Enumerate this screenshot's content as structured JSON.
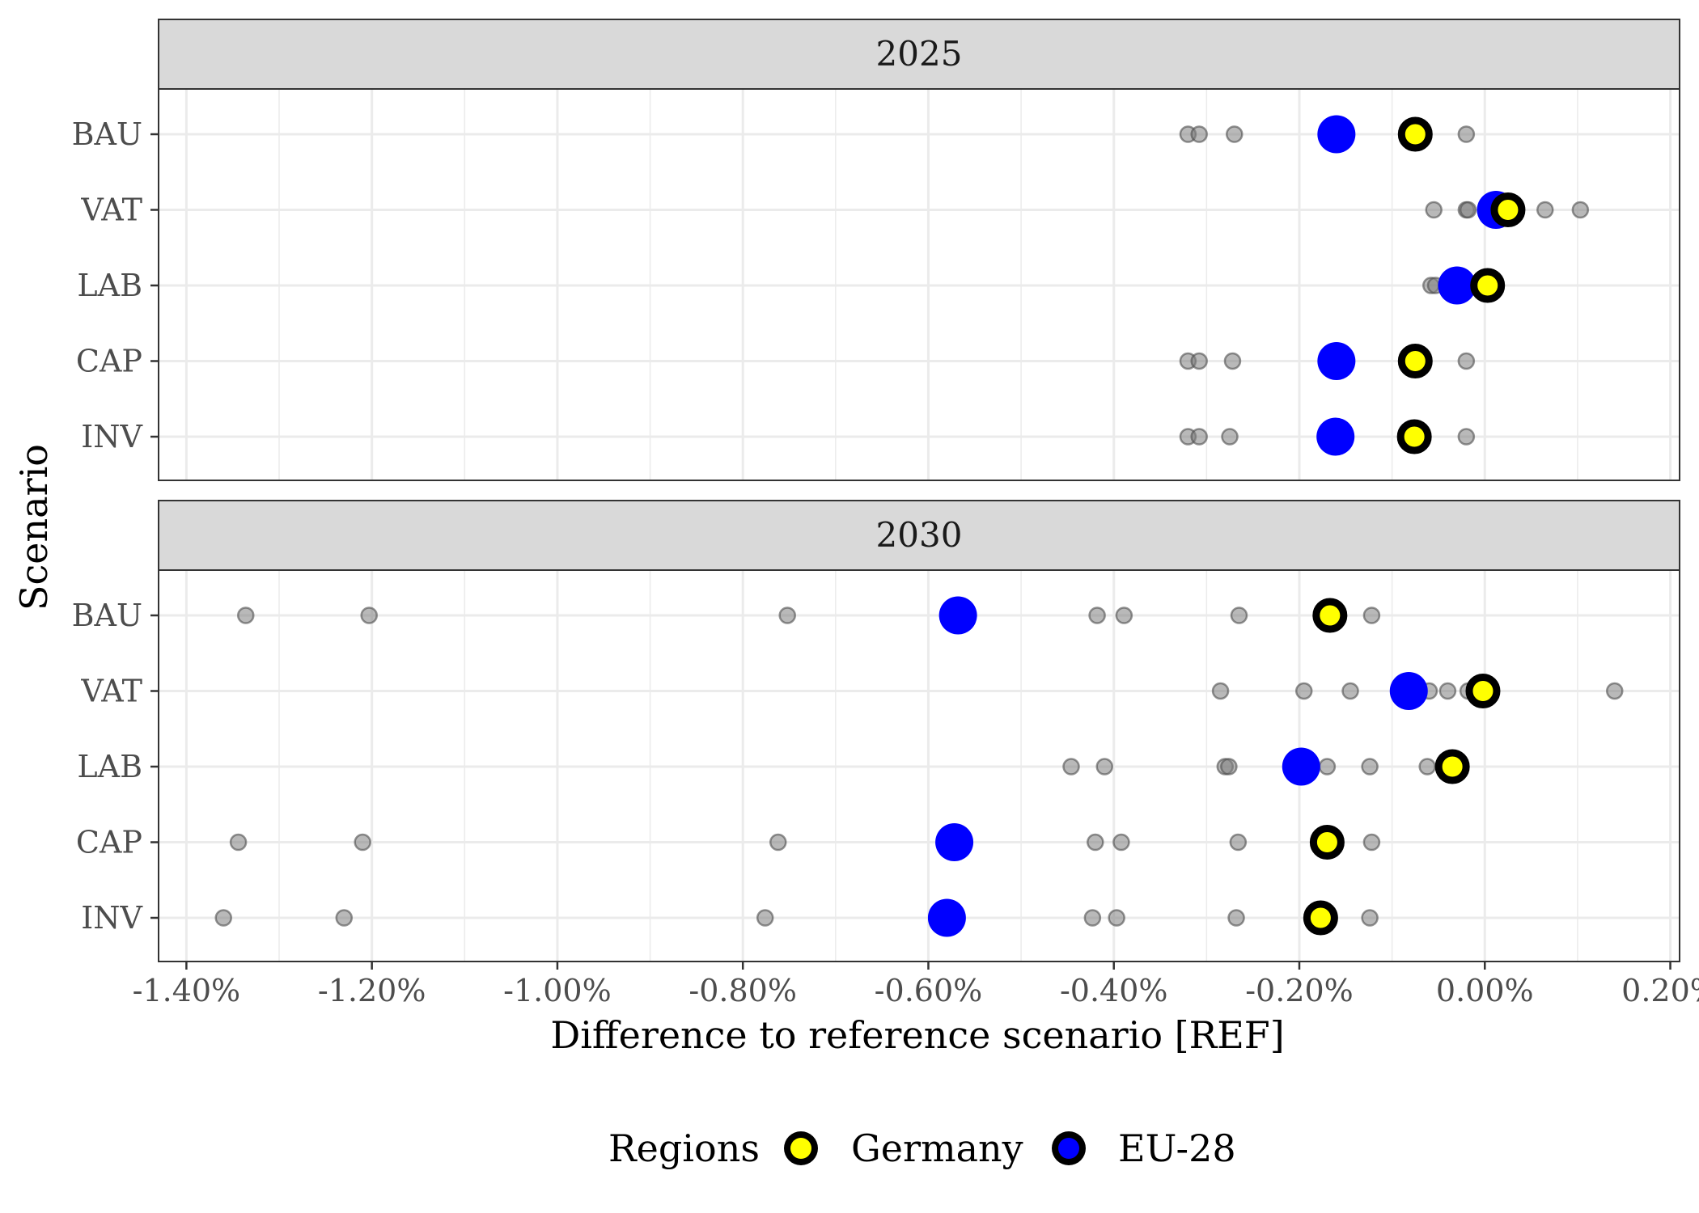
{
  "chart_data": {
    "type": "scatter",
    "xlabel": "Difference to reference scenario [REF]",
    "ylabel": "Scenario",
    "xlim": [
      -1.43,
      0.21
    ],
    "x_unit": "%",
    "x_ticks": [
      -1.4,
      -1.2,
      -1.0,
      -0.8,
      -0.6,
      -0.4,
      -0.2,
      0.0,
      0.2
    ],
    "x_tick_labels": [
      "-1.40%",
      "-1.20%",
      "-1.00%",
      "-0.80%",
      "-0.60%",
      "-0.40%",
      "-0.20%",
      "0.00%",
      "0.20%"
    ],
    "categories": [
      "BAU",
      "VAT",
      "LAB",
      "CAP",
      "INV"
    ],
    "grid": true,
    "legend": {
      "title": "Regions",
      "position": "bottom",
      "entries": [
        {
          "name": "Germany",
          "fill": "#ffff00",
          "outline": "#000000"
        },
        {
          "name": "EU-28",
          "fill": "#0000ff",
          "outline": "#000000"
        }
      ]
    },
    "colors": {
      "germany": "#ffff00",
      "eu28": "#0000ff",
      "other_regions": "#808080",
      "strip": "#d9d9d9"
    },
    "panels": [
      {
        "label": "2025",
        "rows": [
          {
            "scenario": "BAU",
            "germany": -0.075,
            "eu28": -0.16,
            "others": [
              -0.32,
              -0.308,
              -0.27,
              -0.02
            ]
          },
          {
            "scenario": "VAT",
            "germany": 0.025,
            "eu28": 0.012,
            "others": [
              -0.055,
              -0.02,
              -0.018,
              0.005,
              0.065,
              0.103
            ]
          },
          {
            "scenario": "LAB",
            "germany": 0.003,
            "eu28": -0.03,
            "others": [
              -0.058,
              -0.053
            ]
          },
          {
            "scenario": "CAP",
            "germany": -0.075,
            "eu28": -0.16,
            "others": [
              -0.32,
              -0.308,
              -0.272,
              -0.02
            ]
          },
          {
            "scenario": "INV",
            "germany": -0.076,
            "eu28": -0.161,
            "others": [
              -0.32,
              -0.308,
              -0.275,
              -0.02
            ]
          }
        ]
      },
      {
        "label": "2030",
        "rows": [
          {
            "scenario": "BAU",
            "germany": -0.167,
            "eu28": -0.568,
            "others": [
              -1.336,
              -1.203,
              -0.752,
              -0.418,
              -0.389,
              -0.265,
              -0.122
            ]
          },
          {
            "scenario": "VAT",
            "germany": -0.002,
            "eu28": -0.082,
            "others": [
              -0.285,
              -0.195,
              -0.145,
              -0.06,
              -0.04,
              -0.018,
              0.14
            ]
          },
          {
            "scenario": "LAB",
            "germany": -0.035,
            "eu28": -0.198,
            "others": [
              -0.446,
              -0.41,
              -0.28,
              -0.276,
              -0.17,
              -0.124,
              -0.062
            ]
          },
          {
            "scenario": "CAP",
            "germany": -0.17,
            "eu28": -0.572,
            "others": [
              -1.344,
              -1.21,
              -0.762,
              -0.42,
              -0.392,
              -0.266,
              -0.122
            ]
          },
          {
            "scenario": "INV",
            "germany": -0.177,
            "eu28": -0.58,
            "others": [
              -1.36,
              -1.23,
              -0.776,
              -0.423,
              -0.397,
              -0.268,
              -0.124
            ]
          }
        ]
      }
    ]
  }
}
